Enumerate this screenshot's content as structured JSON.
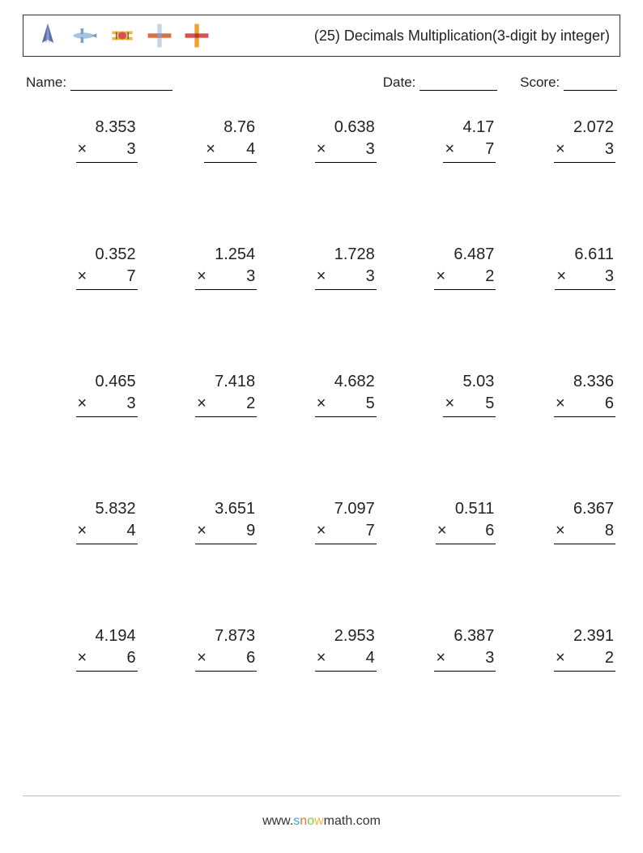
{
  "header": {
    "title": "(25) Decimals Multiplication(3-digit by integer)",
    "icon_colors": {
      "rocket": "#5b6aa8",
      "jet": "#7aa2c9",
      "biplane": "#e8b93e",
      "cross_plane_body": "#c9d4e8",
      "cross_plane_bar": "#d96f3e",
      "cross_plane2_body": "#f0a030",
      "cross_plane2_bar": "#d85050"
    }
  },
  "info": {
    "name_label": "Name:",
    "date_label": "Date:",
    "score_label": "Score:"
  },
  "operator": "×",
  "layout": {
    "grid_cols": 5,
    "grid_rows": 5,
    "problem_fontsize": 20,
    "title_fontsize": 18,
    "info_fontsize": 17,
    "border_color": "#333333",
    "text_color": "#222222",
    "background": "#ffffff"
  },
  "problems": [
    {
      "a": "8.353",
      "b": "3"
    },
    {
      "a": "8.76",
      "b": "4"
    },
    {
      "a": "0.638",
      "b": "3"
    },
    {
      "a": "4.17",
      "b": "7"
    },
    {
      "a": "2.072",
      "b": "3"
    },
    {
      "a": "0.352",
      "b": "7"
    },
    {
      "a": "1.254",
      "b": "3"
    },
    {
      "a": "1.728",
      "b": "3"
    },
    {
      "a": "6.487",
      "b": "2"
    },
    {
      "a": "6.611",
      "b": "3"
    },
    {
      "a": "0.465",
      "b": "3"
    },
    {
      "a": "7.418",
      "b": "2"
    },
    {
      "a": "4.682",
      "b": "5"
    },
    {
      "a": "5.03",
      "b": "5"
    },
    {
      "a": "8.336",
      "b": "6"
    },
    {
      "a": "5.832",
      "b": "4"
    },
    {
      "a": "3.651",
      "b": "9"
    },
    {
      "a": "7.097",
      "b": "7"
    },
    {
      "a": "0.511",
      "b": "6"
    },
    {
      "a": "6.367",
      "b": "8"
    },
    {
      "a": "4.194",
      "b": "6"
    },
    {
      "a": "7.873",
      "b": "6"
    },
    {
      "a": "2.953",
      "b": "4"
    },
    {
      "a": "6.387",
      "b": "3"
    },
    {
      "a": "2.391",
      "b": "2"
    }
  ],
  "footer": {
    "prefix": "www.",
    "s": "s",
    "n": "n",
    "o": "o",
    "w": "w",
    "suffix": "math.com"
  }
}
